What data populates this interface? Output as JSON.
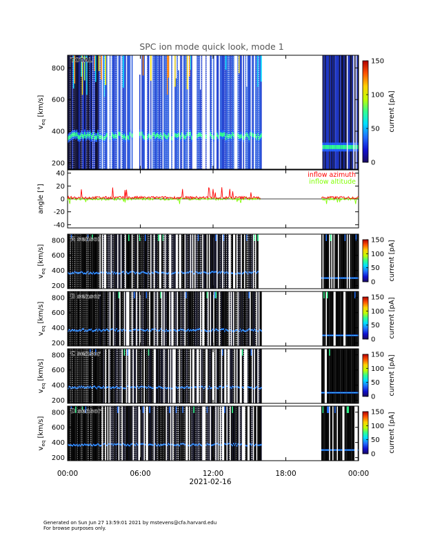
{
  "title": "SPC ion mode quick look, mode 1",
  "footer": {
    "line1": "Generated on Sun Jun 27 13:59:01 2021 by mstevens@cfa.harvard.edu",
    "line2": "For browse purposes only."
  },
  "x_axis": {
    "ticks": [
      "00:00",
      "06:00",
      "12:00",
      "18:00",
      "00:00"
    ],
    "tick_hours": [
      0,
      6,
      12,
      18,
      24
    ],
    "date_label": "2021-02-16",
    "range_hours": [
      0,
      24
    ]
  },
  "chart_data": [
    {
      "type": "heatmap",
      "panel": "total",
      "label": "TOTAL",
      "ylabel_main": "v",
      "ylabel_sub": "eq",
      "ylabel_unit": "[km/s]",
      "y_ticks": [
        200,
        400,
        600,
        800
      ],
      "ylim": [
        160,
        880
      ],
      "colorbar": {
        "label": "current [pA]",
        "ticks": [
          0,
          50,
          100,
          150
        ],
        "range": [
          0,
          150
        ]
      },
      "data_intervals_hours": [
        [
          0.0,
          15.95
        ],
        [
          20.9,
          24.0
        ]
      ],
      "beam_speed_kms": [
        {
          "from": 0,
          "to": 16,
          "value": 370
        },
        {
          "from": 20.9,
          "to": 24,
          "value": 300
        }
      ]
    },
    {
      "type": "line",
      "panel": "angle",
      "ylabel": "angle [°]",
      "y_ticks": [
        -40,
        -20,
        0,
        20,
        40
      ],
      "ylim": [
        -45,
        45
      ],
      "series": [
        {
          "name": "inflow azimuth",
          "color": "#ff0000"
        },
        {
          "name": "inflow altitude",
          "color": "#80ff00"
        }
      ]
    },
    {
      "type": "heatmap",
      "panel": "A",
      "label": "A sensor",
      "ylabel_main": "v",
      "ylabel_sub": "eq",
      "ylabel_unit": "[km/s]",
      "y_ticks": [
        200,
        400,
        600,
        800
      ],
      "ylim": [
        160,
        880
      ],
      "colorbar": {
        "label": "current [pA]",
        "ticks": [
          0,
          50,
          100,
          150
        ],
        "range": [
          0,
          150
        ]
      }
    },
    {
      "type": "heatmap",
      "panel": "B",
      "label": "B sensor",
      "ylabel_main": "v",
      "ylabel_sub": "eq",
      "ylabel_unit": "[km/s]",
      "y_ticks": [
        200,
        400,
        600,
        800
      ],
      "ylim": [
        160,
        880
      ],
      "colorbar": {
        "label": "current [pA]",
        "ticks": [
          0,
          50,
          100,
          150
        ],
        "range": [
          0,
          150
        ]
      }
    },
    {
      "type": "heatmap",
      "panel": "C",
      "label": "C sensor",
      "ylabel_main": "v",
      "ylabel_sub": "eq",
      "ylabel_unit": "[km/s]",
      "y_ticks": [
        200,
        400,
        600,
        800
      ],
      "ylim": [
        160,
        880
      ],
      "colorbar": {
        "label": "current [pA]",
        "ticks": [
          0,
          50,
          100,
          150
        ],
        "range": [
          0,
          150
        ]
      }
    },
    {
      "type": "heatmap",
      "panel": "D",
      "label": "D sensor",
      "ylabel_main": "v",
      "ylabel_sub": "eq",
      "ylabel_unit": "[km/s]",
      "y_ticks": [
        200,
        400,
        600,
        800
      ],
      "ylim": [
        160,
        880
      ],
      "colorbar": {
        "label": "current [pA]",
        "ticks": [
          0,
          50,
          100,
          150
        ],
        "range": [
          0,
          150
        ]
      }
    }
  ]
}
